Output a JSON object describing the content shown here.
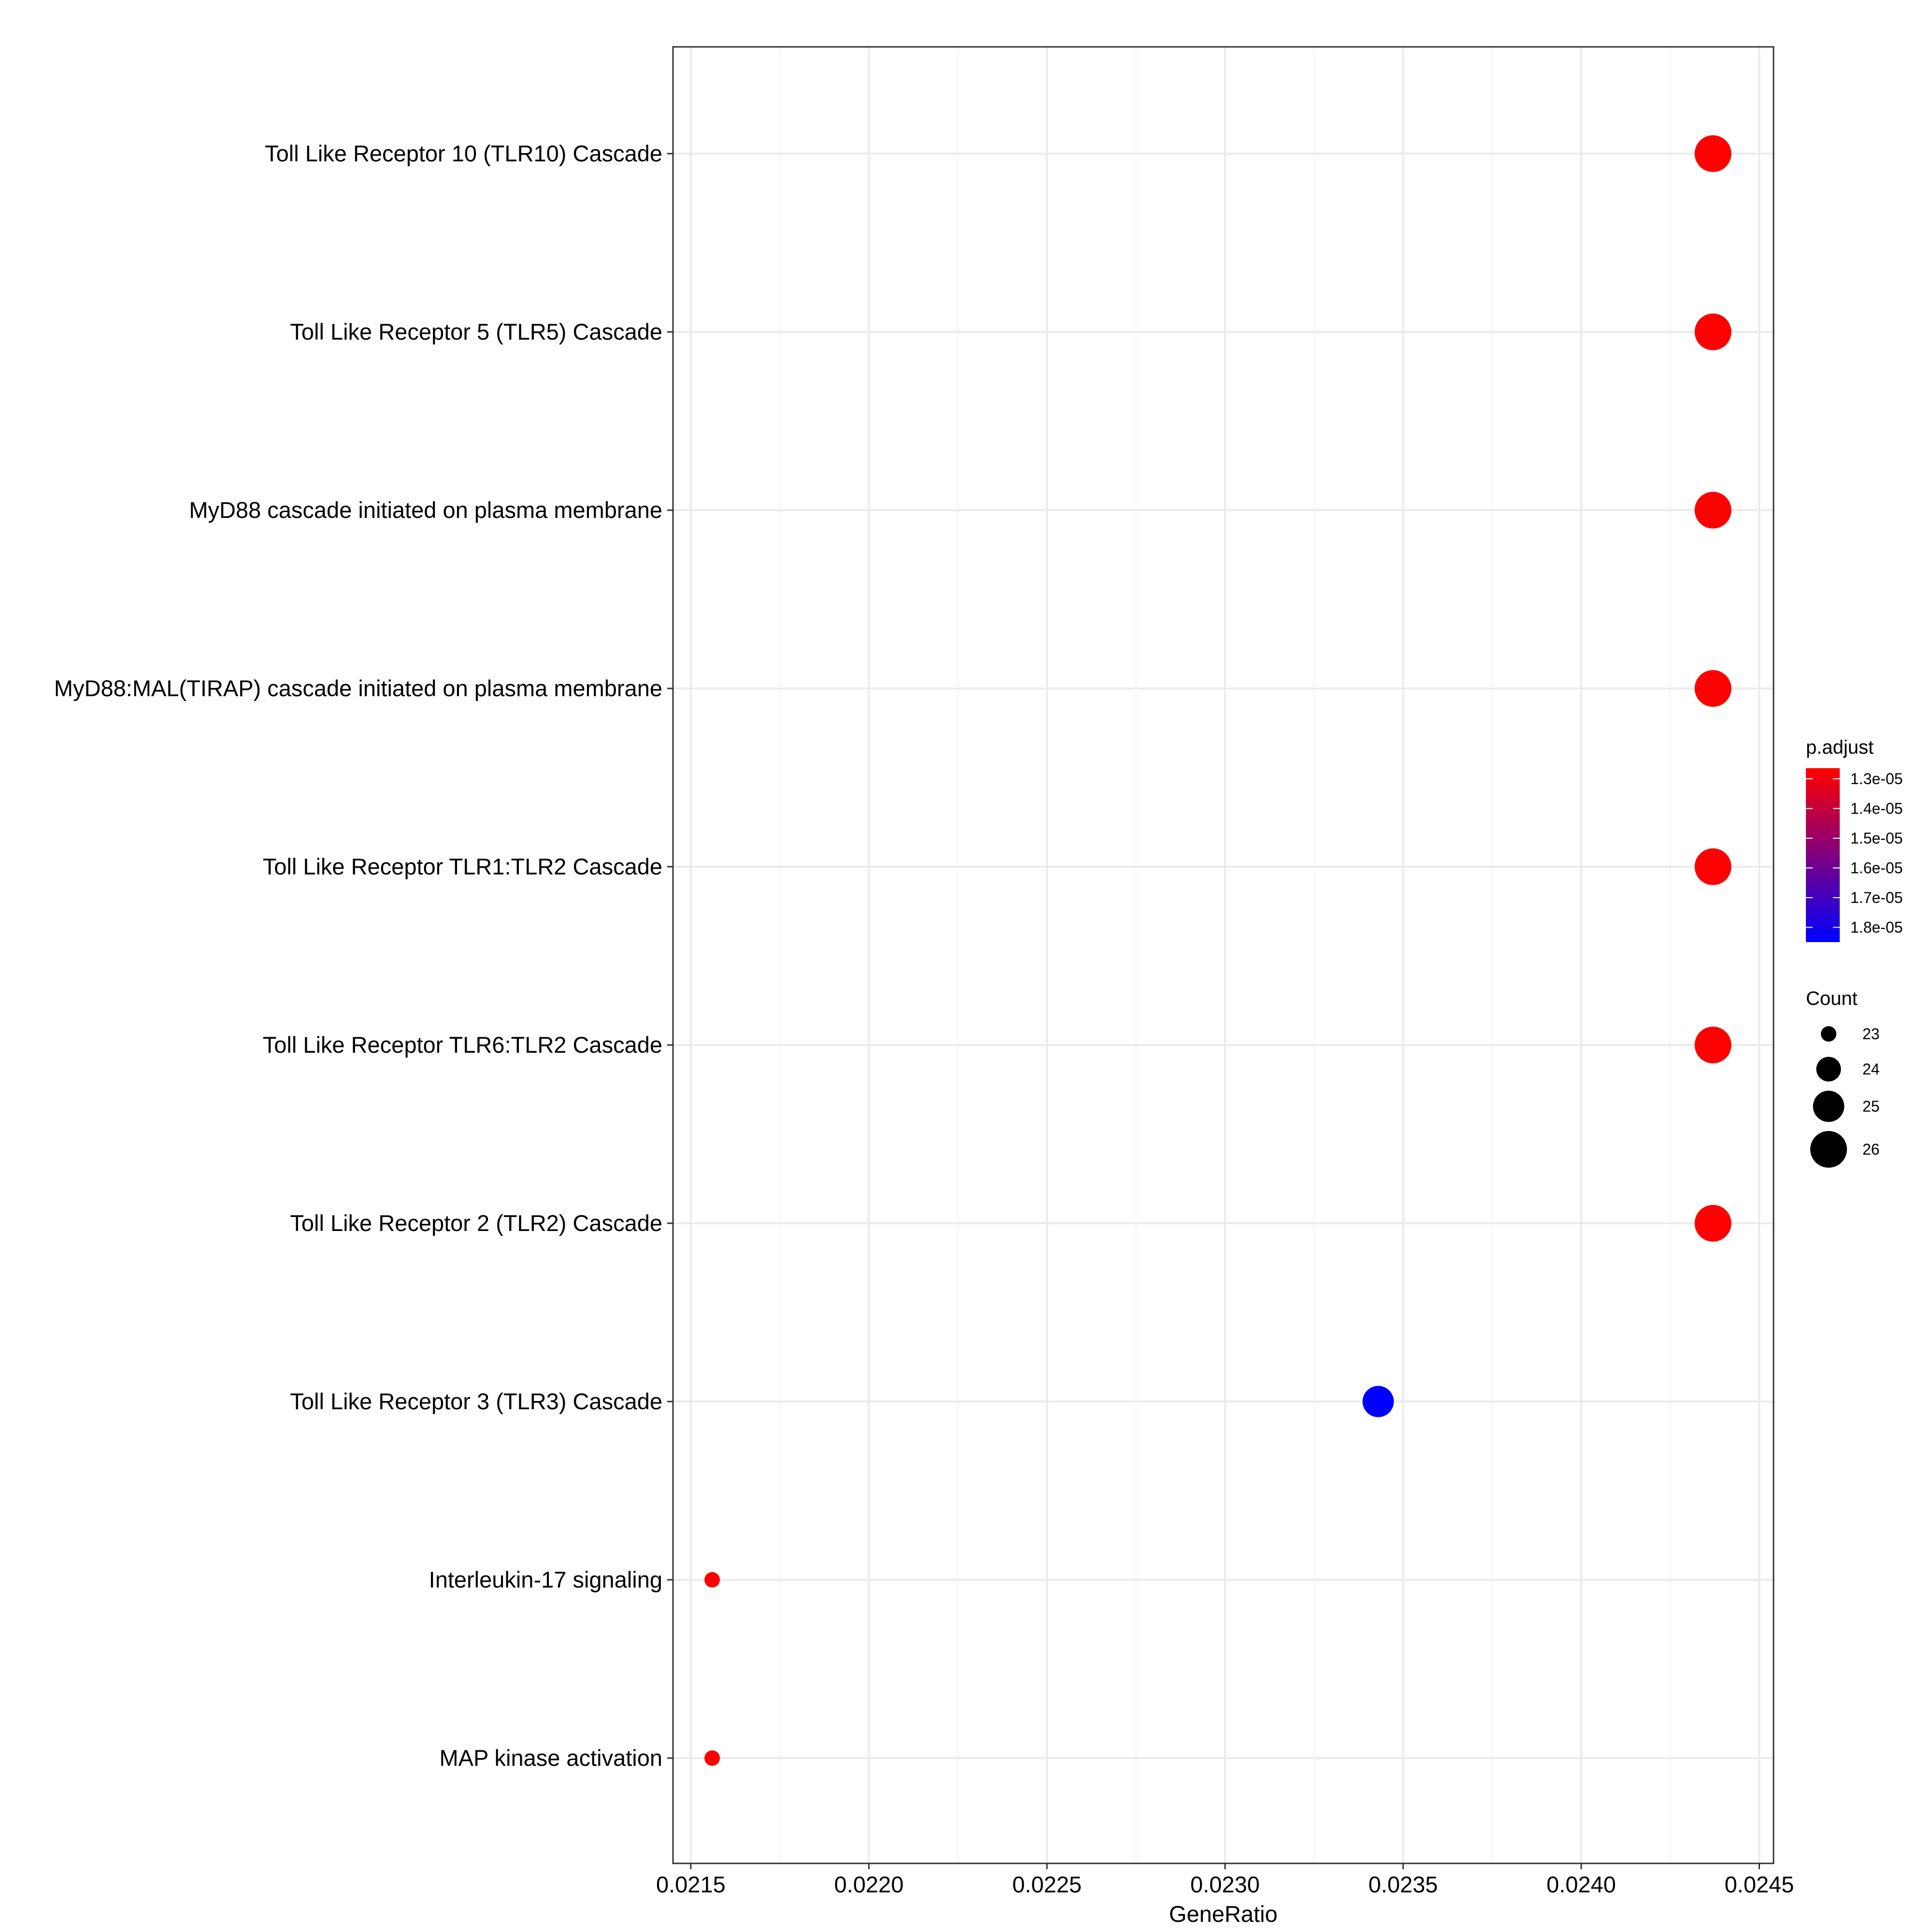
{
  "chart_data": {
    "type": "scatter",
    "xlabel": "GeneRatio",
    "ylabel": "",
    "xlim": [
      0.02145,
      0.02454
    ],
    "x_ticks": [
      "0.0215",
      "0.0220",
      "0.0225",
      "0.0230",
      "0.0235",
      "0.0240",
      "0.0245"
    ],
    "grid": true,
    "categories": [
      "Toll Like Receptor 10 (TLR10) Cascade",
      "Toll Like Receptor 5 (TLR5) Cascade",
      "MyD88 cascade initiated on plasma membrane",
      "MyD88:MAL(TIRAP) cascade initiated on plasma membrane",
      "Toll Like Receptor TLR1:TLR2 Cascade",
      "Toll Like Receptor TLR6:TLR2 Cascade",
      "Toll Like Receptor 2 (TLR2) Cascade",
      "Toll Like Receptor 3 (TLR3) Cascade",
      "Interleukin-17 signaling",
      "MAP kinase activation"
    ],
    "points": [
      {
        "category": "Toll Like Receptor 10 (TLR10) Cascade",
        "x": 0.02437,
        "count": 26,
        "p_adjust": 1.3e-05
      },
      {
        "category": "Toll Like Receptor 5 (TLR5) Cascade",
        "x": 0.02437,
        "count": 26,
        "p_adjust": 1.3e-05
      },
      {
        "category": "MyD88 cascade initiated on plasma membrane",
        "x": 0.02437,
        "count": 26,
        "p_adjust": 1.3e-05
      },
      {
        "category": "MyD88:MAL(TIRAP) cascade initiated on plasma membrane",
        "x": 0.02437,
        "count": 26,
        "p_adjust": 1.3e-05
      },
      {
        "category": "Toll Like Receptor TLR1:TLR2 Cascade",
        "x": 0.02437,
        "count": 26,
        "p_adjust": 1.3e-05
      },
      {
        "category": "Toll Like Receptor TLR6:TLR2 Cascade",
        "x": 0.02437,
        "count": 26,
        "p_adjust": 1.3e-05
      },
      {
        "category": "Toll Like Receptor 2 (TLR2) Cascade",
        "x": 0.02437,
        "count": 26,
        "p_adjust": 1.3e-05
      },
      {
        "category": "Toll Like Receptor 3 (TLR3) Cascade",
        "x": 0.02343,
        "count": 25,
        "p_adjust": 1.83e-05
      },
      {
        "category": "Interleukin-17 signaling",
        "x": 0.02156,
        "count": 23,
        "p_adjust": 1.3e-05
      },
      {
        "category": "MAP kinase activation",
        "x": 0.02156,
        "count": 23,
        "p_adjust": 1.3e-05
      }
    ],
    "color_legend": {
      "title": "p.adjust",
      "range": [
        1.3e-05,
        1.83e-05
      ],
      "low_color": "#ff0000",
      "high_color": "#0000ff",
      "ticks": [
        {
          "label": "1.3e-05",
          "value": 1.3e-05
        },
        {
          "label": "1.4e-05",
          "value": 1.4e-05
        },
        {
          "label": "1.5e-05",
          "value": 1.5e-05
        },
        {
          "label": "1.6e-05",
          "value": 1.6e-05
        },
        {
          "label": "1.7e-05",
          "value": 1.7e-05
        },
        {
          "label": "1.8e-05",
          "value": 1.8e-05
        }
      ]
    },
    "size_legend": {
      "title": "Count",
      "range": [
        23,
        26
      ],
      "entries": [
        {
          "label": "23",
          "value": 23
        },
        {
          "label": "24",
          "value": 24
        },
        {
          "label": "25",
          "value": 25
        },
        {
          "label": "26",
          "value": 26
        }
      ]
    },
    "legend_position": "right"
  }
}
